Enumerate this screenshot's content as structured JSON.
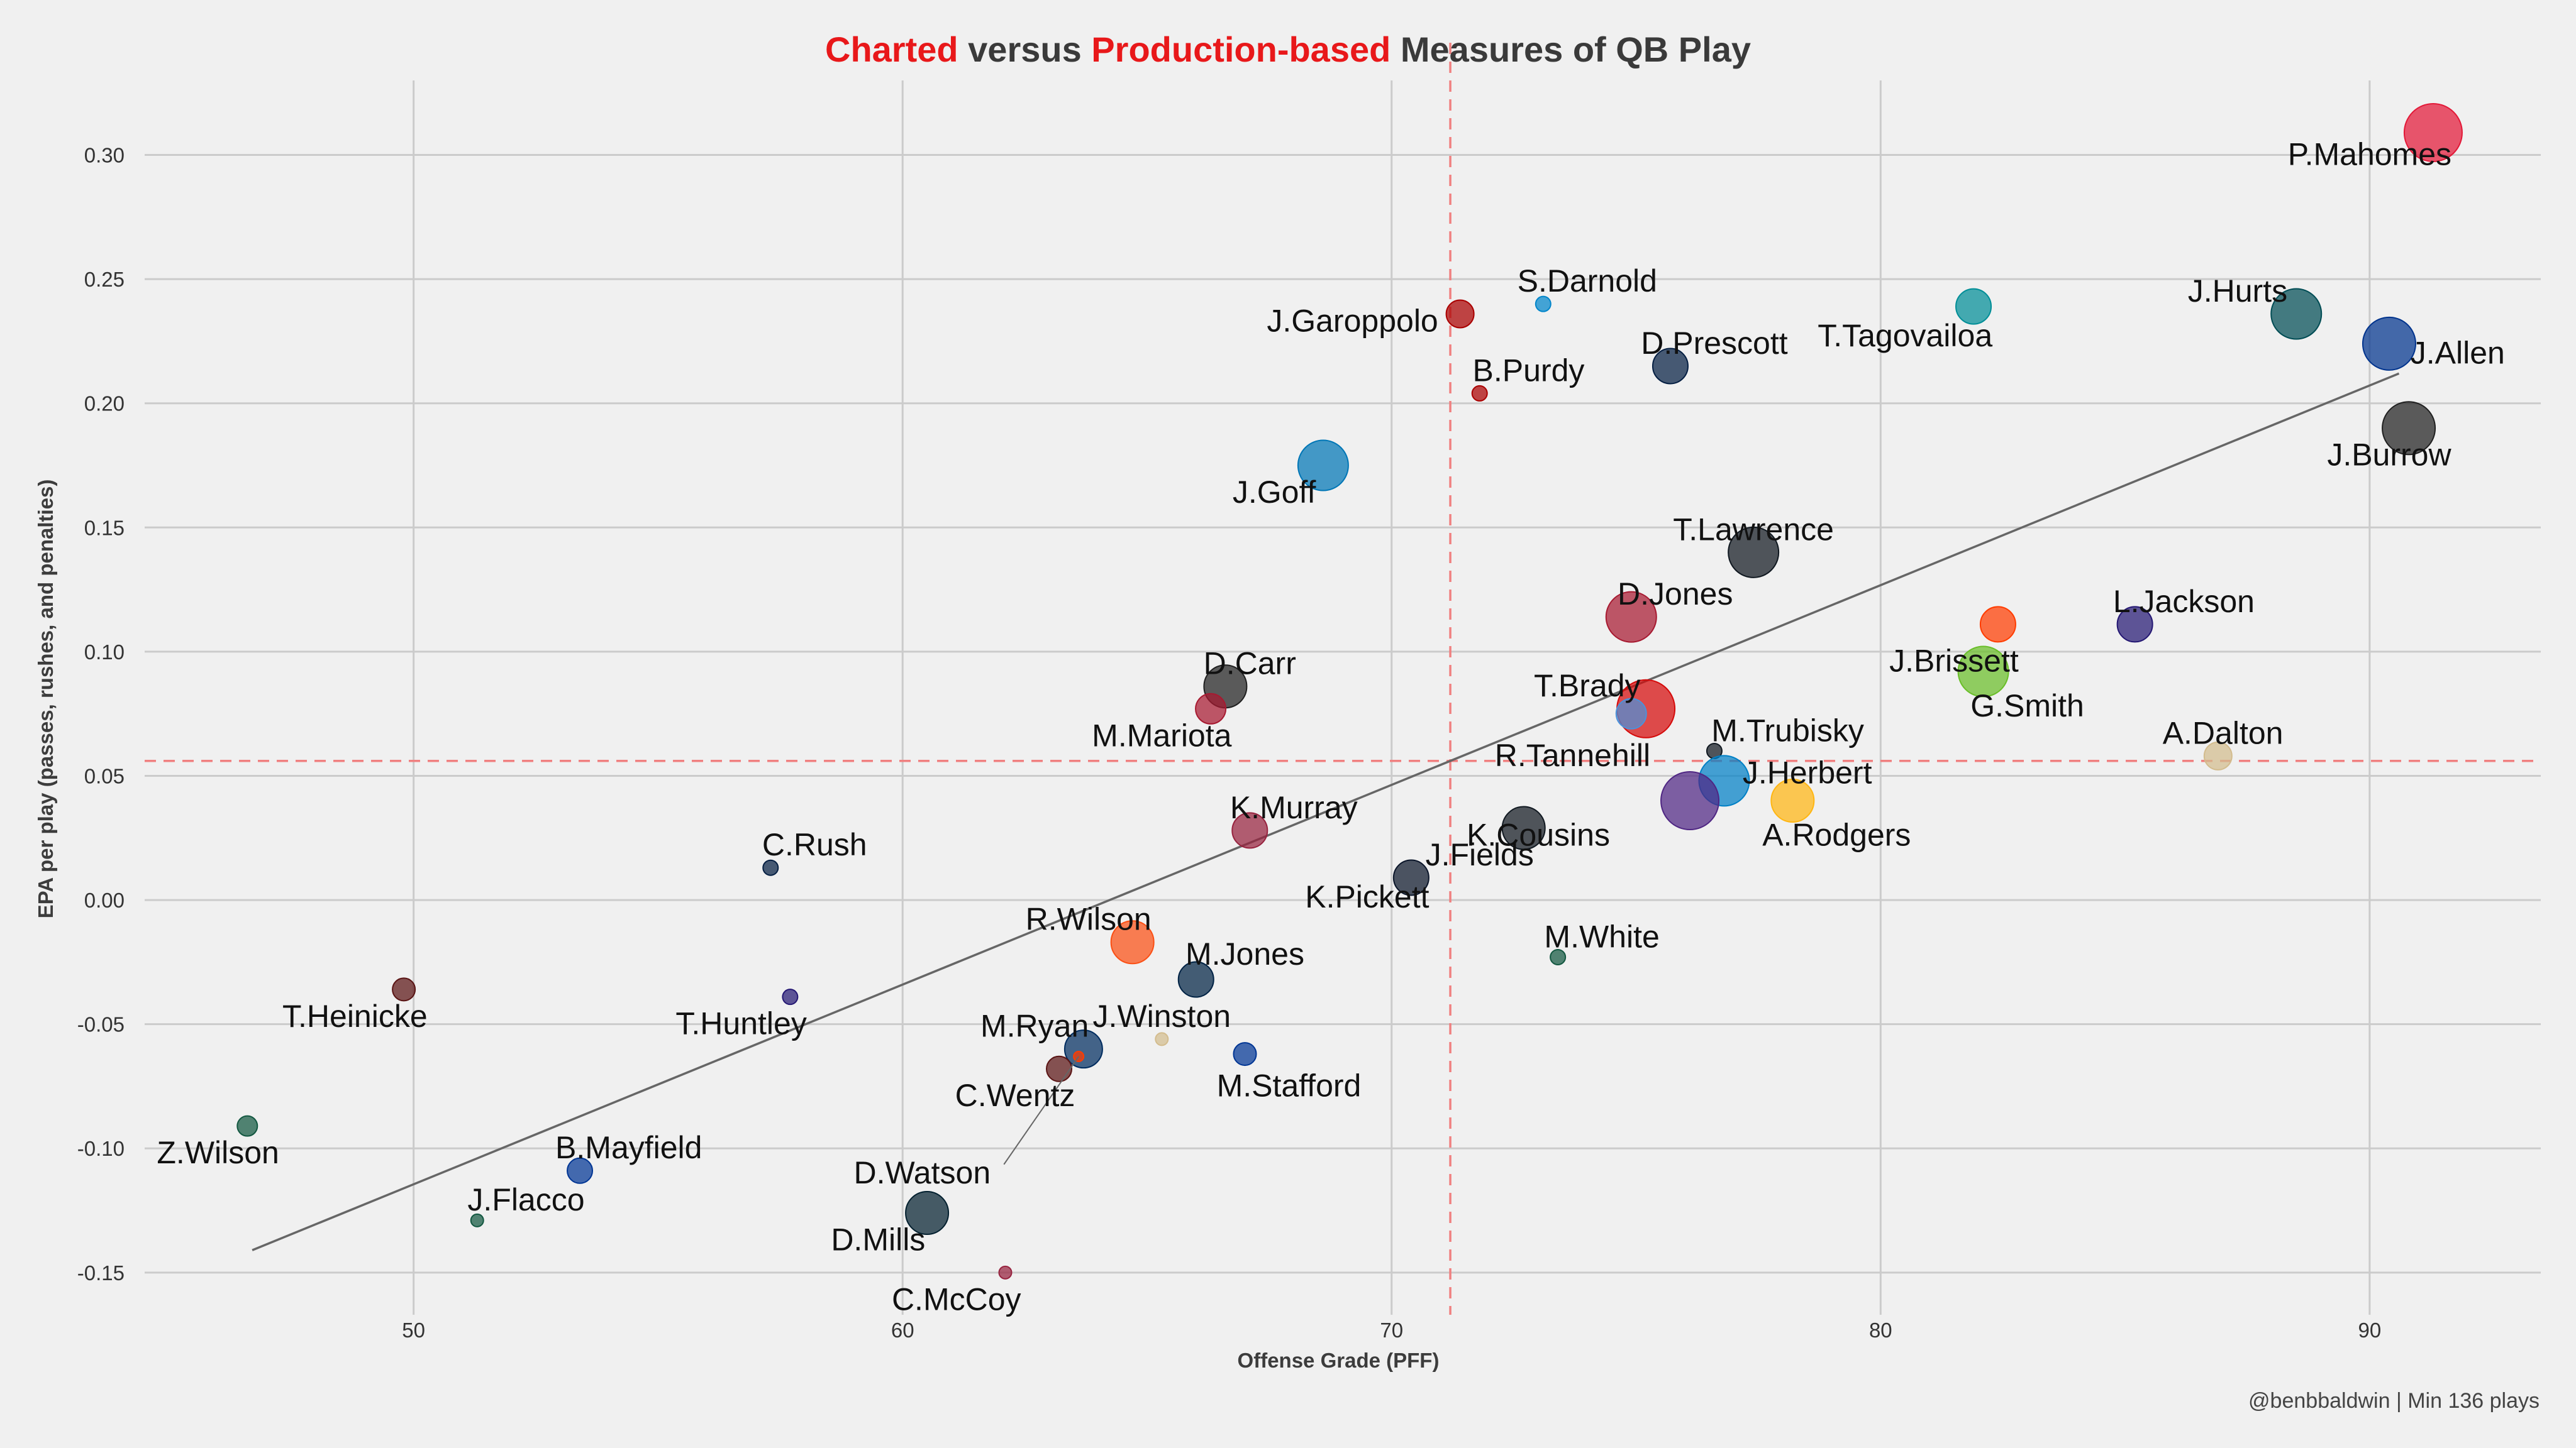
{
  "chart_data": {
    "type": "scatter",
    "title": {
      "parts": [
        {
          "text": "Charted",
          "color": "#e8181a"
        },
        {
          "text": " versus ",
          "color": "#3a3a3a"
        },
        {
          "text": "Production-based",
          "color": "#e8181a"
        },
        {
          "text": " Measures of QB Play",
          "color": "#3a3a3a"
        }
      ]
    },
    "xlabel": "Offense Grade (PFF)",
    "ylabel": "EPA per play (passes, rushes, and penalties)",
    "caption": "@benbbaldwin | Min 136 plays",
    "xlim": [
      44.5,
      93.5
    ],
    "ylim": [
      -0.167,
      0.33
    ],
    "xticks": [
      50,
      60,
      70,
      80,
      90
    ],
    "xtick_labels": [
      "50",
      "60",
      "70",
      "80",
      "90"
    ],
    "yticks": [
      -0.15,
      -0.1,
      -0.05,
      0.0,
      0.05,
      0.1,
      0.15,
      0.2,
      0.25,
      0.3
    ],
    "ytick_labels": [
      "-0.15",
      "-0.10",
      "-0.05",
      "0.00",
      "0.05",
      "0.10",
      "0.15",
      "0.20",
      "0.25",
      "0.30"
    ],
    "grid": true,
    "ref_lines": {
      "x": 71.2,
      "y": 0.056,
      "color": "#f08080"
    },
    "trend_line": {
      "x": [
        46.7,
        90.6
      ],
      "y": [
        -0.141,
        0.212
      ],
      "color": "#666666"
    },
    "points": [
      {
        "name": "P.Mahomes",
        "x": 91.3,
        "y": 0.309,
        "size": 46,
        "color": "#e31837",
        "label_dx": -1.3,
        "label_dy": -0.009
      },
      {
        "name": "J.Hurts",
        "x": 88.5,
        "y": 0.236,
        "size": 40,
        "color": "#004c54",
        "label_dx": -1.2,
        "label_dy": 0.009
      },
      {
        "name": "J.Allen",
        "x": 90.4,
        "y": 0.224,
        "size": 42,
        "color": "#00338d",
        "label_dx": 1.4,
        "label_dy": -0.004
      },
      {
        "name": "J.Burrow",
        "x": 90.8,
        "y": 0.19,
        "size": 42,
        "color": "#202020",
        "label_dx": -0.4,
        "label_dy": -0.011
      },
      {
        "name": "T.Tagovailoa",
        "x": 81.9,
        "y": 0.239,
        "size": 28,
        "color": "#008e97",
        "label_dx": -1.4,
        "label_dy": -0.012
      },
      {
        "name": "S.Darnold",
        "x": 73.1,
        "y": 0.24,
        "size": 12,
        "color": "#0085ca",
        "label_dx": 0.9,
        "label_dy": 0.009
      },
      {
        "name": "J.Garoppolo",
        "x": 71.4,
        "y": 0.236,
        "size": 22,
        "color": "#aa0000",
        "label_dx": -2.2,
        "label_dy": -0.003
      },
      {
        "name": "D.Prescott",
        "x": 75.7,
        "y": 0.215,
        "size": 28,
        "color": "#041e42",
        "label_dx": 0.9,
        "label_dy": 0.009
      },
      {
        "name": "B.Purdy",
        "x": 71.8,
        "y": 0.204,
        "size": 12,
        "color": "#aa0000",
        "label_dx": 1.0,
        "label_dy": 0.009
      },
      {
        "name": "J.Goff",
        "x": 68.6,
        "y": 0.175,
        "size": 40,
        "color": "#0076b6",
        "label_dx": -1.0,
        "label_dy": -0.011
      },
      {
        "name": "T.Lawrence",
        "x": 77.4,
        "y": 0.14,
        "size": 40,
        "color": "#101820",
        "label_dx": 0.0,
        "label_dy": 0.009
      },
      {
        "name": "D.Jones",
        "x": 74.9,
        "y": 0.114,
        "size": 40,
        "color": "#a71930",
        "label_dx": 0.9,
        "label_dy": 0.009
      },
      {
        "name": "L.Jackson",
        "x": 85.2,
        "y": 0.111,
        "size": 28,
        "color": "#241773",
        "label_dx": 1.0,
        "label_dy": 0.009
      },
      {
        "name": "J.Brissett",
        "x": 82.4,
        "y": 0.111,
        "size": 28,
        "color": "#ff3c00",
        "label_dx": -0.9,
        "label_dy": -0.015
      },
      {
        "name": "G.Smith",
        "x": 82.1,
        "y": 0.092,
        "size": 40,
        "color": "#69be28",
        "label_dx": 0.9,
        "label_dy": -0.014
      },
      {
        "name": "D.Carr",
        "x": 66.6,
        "y": 0.086,
        "size": 34,
        "color": "#202020",
        "label_dx": 0.5,
        "label_dy": 0.009
      },
      {
        "name": "M.Mariota",
        "x": 66.3,
        "y": 0.077,
        "size": 24,
        "color": "#a71930",
        "label_dx": -1.0,
        "label_dy": -0.011
      },
      {
        "name": "T.Brady",
        "x": 75.2,
        "y": 0.077,
        "size": 46,
        "color": "#d50a0a",
        "label_dx": -1.2,
        "label_dy": 0.009
      },
      {
        "name": "R.Tannehill",
        "x": 74.9,
        "y": 0.075,
        "size": 24,
        "color": "#4b92db",
        "label_dx": -1.2,
        "label_dy": -0.017
      },
      {
        "name": "M.Trubisky",
        "x": 76.6,
        "y": 0.06,
        "size": 12,
        "color": "#101820",
        "label_dx": 1.5,
        "label_dy": 0.008
      },
      {
        "name": "A.Dalton",
        "x": 86.9,
        "y": 0.058,
        "size": 22,
        "color": "#d3bc8d",
        "label_dx": 0.1,
        "label_dy": 0.009
      },
      {
        "name": "J.Herbert",
        "x": 76.8,
        "y": 0.048,
        "size": 40,
        "color": "#0080c6",
        "label_dx": 1.7,
        "label_dy": 0.003
      },
      {
        "name": "A.Rodgers",
        "x": 78.2,
        "y": 0.04,
        "size": 34,
        "color": "#ffb612",
        "label_dx": 0.9,
        "label_dy": -0.014
      },
      {
        "name": "K.Cousins",
        "x": 76.1,
        "y": 0.04,
        "size": 46,
        "color": "#4f2683",
        "label_dx": -3.1,
        "label_dy": -0.014
      },
      {
        "name": "K.Murray",
        "x": 67.1,
        "y": 0.028,
        "size": 28,
        "color": "#97233f",
        "label_dx": 0.9,
        "label_dy": 0.009
      },
      {
        "name": "C.Rush",
        "x": 57.3,
        "y": 0.013,
        "size": 12,
        "color": "#041e42",
        "label_dx": 0.9,
        "label_dy": 0.009
      },
      {
        "name": "J.Fields",
        "x": 70.4,
        "y": 0.009,
        "size": 28,
        "color": "#0b162a",
        "label_dx": 1.4,
        "label_dy": 0.009
      },
      {
        "name": "K.Pickett",
        "x": 72.7,
        "y": 0.029,
        "size": 34,
        "color": "#101820",
        "label_dx": -3.2,
        "label_dy": -0.028
      },
      {
        "name": "M.White",
        "x": 73.4,
        "y": -0.023,
        "size": 12,
        "color": "#125740",
        "label_dx": 0.9,
        "label_dy": 0.008
      },
      {
        "name": "R.Wilson",
        "x": 64.7,
        "y": -0.017,
        "size": 34,
        "color": "#fb4f14",
        "label_dx": -0.9,
        "label_dy": 0.009
      },
      {
        "name": "M.Jones",
        "x": 66.0,
        "y": -0.032,
        "size": 28,
        "color": "#002244",
        "label_dx": 1.0,
        "label_dy": 0.01
      },
      {
        "name": "T.Heinicke",
        "x": 49.8,
        "y": -0.036,
        "size": 18,
        "color": "#5a1414",
        "label_dx": -1.0,
        "label_dy": -0.011
      },
      {
        "name": "T.Huntley",
        "x": 57.7,
        "y": -0.039,
        "size": 12,
        "color": "#241773",
        "label_dx": -1.0,
        "label_dy": -0.011
      },
      {
        "name": "J.Winston",
        "x": 65.3,
        "y": -0.056,
        "size": 10,
        "color": "#d3bc8d",
        "label_dx": 0.0,
        "label_dy": 0.009
      },
      {
        "name": "M.Stafford",
        "x": 67.0,
        "y": -0.062,
        "size": 18,
        "color": "#003594",
        "label_dx": 0.9,
        "label_dy": -0.013
      },
      {
        "name": "M.Ryan",
        "x": 63.7,
        "y": -0.06,
        "size": 30,
        "color": "#002c5f",
        "label_dx": -1.0,
        "label_dy": 0.009
      },
      {
        "name": "D.Watson",
        "x": 63.6,
        "y": -0.063,
        "size": 8,
        "color": "#ff3c00",
        "label_dx": -3.2,
        "label_dy": -0.047
      },
      {
        "name": "C.Wentz",
        "x": 63.2,
        "y": -0.068,
        "size": 20,
        "color": "#5a1414",
        "label_dx": -0.9,
        "label_dy": -0.011
      },
      {
        "name": "Z.Wilson",
        "x": 46.6,
        "y": -0.091,
        "size": 16,
        "color": "#125740",
        "label_dx": -0.6,
        "label_dy": -0.011
      },
      {
        "name": "B.Mayfield",
        "x": 53.4,
        "y": -0.109,
        "size": 20,
        "color": "#003594",
        "label_dx": 1.0,
        "label_dy": 0.009
      },
      {
        "name": "J.Flacco",
        "x": 51.3,
        "y": -0.129,
        "size": 10,
        "color": "#125740",
        "label_dx": 1.0,
        "label_dy": 0.008
      },
      {
        "name": "D.Mills",
        "x": 60.5,
        "y": -0.126,
        "size": 34,
        "color": "#03202f",
        "label_dx": -1.0,
        "label_dy": -0.011
      },
      {
        "name": "C.McCoy",
        "x": 62.1,
        "y": -0.15,
        "size": 10,
        "color": "#97233f",
        "label_dx": -1.0,
        "label_dy": -0.011
      }
    ]
  }
}
